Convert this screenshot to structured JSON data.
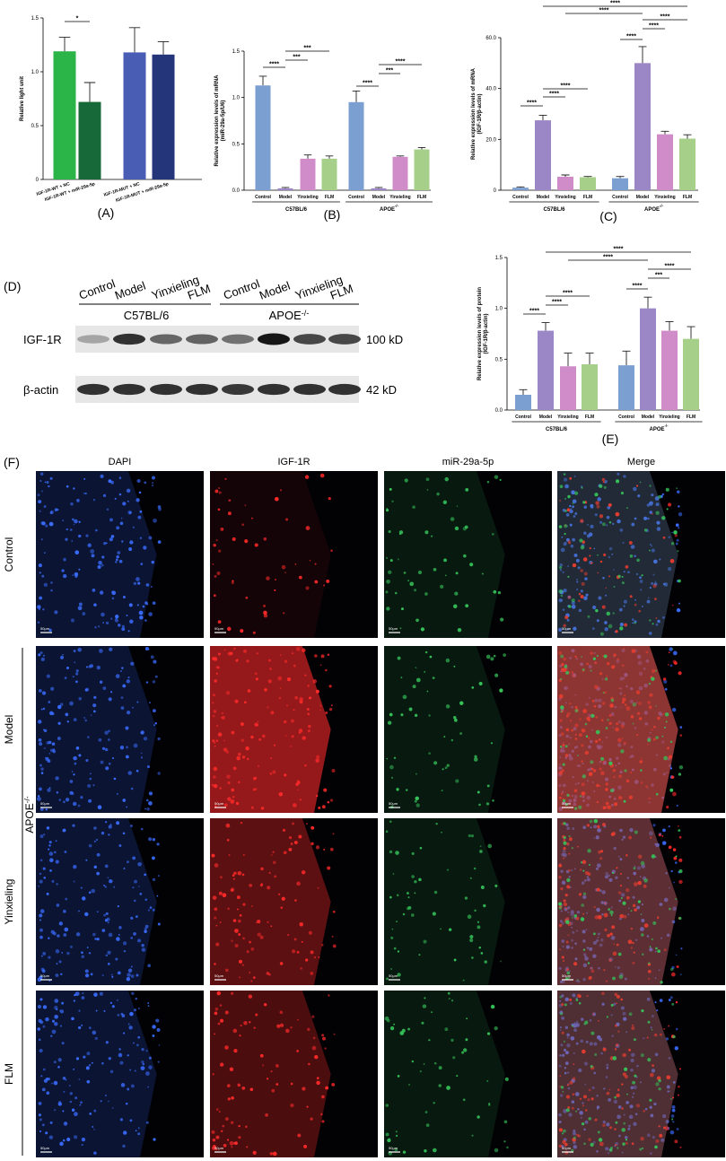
{
  "chart_data": [
    {
      "type": "bar",
      "panel": "(A)",
      "ylabel": [
        "Relative light unit"
      ],
      "categories": [
        "IGF-1R-WT + NC",
        "IGF-1R-WT + miR-29a-5p",
        "IGF-1R-MUT + NC",
        "IGF-1R-MUT + miR-29a-5p"
      ],
      "values": [
        1.19,
        0.72,
        1.18,
        1.16
      ],
      "errors": [
        0.13,
        0.18,
        0.23,
        0.12
      ],
      "colors": [
        "#2bb548",
        "#17693a",
        "#4a5db4",
        "#24357a"
      ],
      "ylim": [
        0,
        1.5
      ],
      "yticks": [
        0,
        0.5,
        {
          "value": 1,
          "label": "1.0"
        },
        1.5
      ],
      "significance": [
        "*"
      ]
    },
    {
      "type": "bar",
      "panel": "(B)",
      "ylabel": [
        "Relative expression levels of mRNA",
        "(miR-29a-5p/U6)"
      ],
      "categories": [
        "Control",
        "Model",
        "Yinxieling",
        "FLM",
        "Control",
        "Model",
        "Yinxieling",
        "FLM"
      ],
      "values": [
        1.13,
        0.02,
        0.34,
        0.34,
        0.95,
        0.02,
        0.36,
        0.44
      ],
      "errors": [
        0.1,
        0.01,
        0.04,
        0.03,
        0.12,
        0.01,
        0.01,
        0.02
      ],
      "colors": [
        "#7b9fd0",
        "#9b86c6",
        "#d08cc8",
        "#a6d08a",
        "#7b9fd0",
        "#9b86c6",
        "#d08cc8",
        "#a6d08a"
      ],
      "ylim": [
        0,
        1.5
      ],
      "yticks": [
        {
          "value": 0,
          "label": "0.0"
        },
        0.5,
        {
          "value": 1,
          "label": "1.0"
        },
        1.5
      ],
      "groups": [
        "C57BL/6",
        "APOE"
      ],
      "group_superscript": "-/-",
      "significance": [
        "****",
        "***",
        "***",
        "****",
        "***",
        "****"
      ]
    },
    {
      "type": "bar",
      "panel": "(C)",
      "ylabel": [
        "Relative expression levels of mRNA",
        "(IGF-1R/β-actin)"
      ],
      "categories": [
        "Control",
        "Model",
        "Yinxieling",
        "FLM",
        "Control",
        "Model",
        "Yinxieling",
        "FLM"
      ],
      "values": [
        1.0,
        27.5,
        5.3,
        5.1,
        4.7,
        50,
        22,
        20.3
      ],
      "errors": [
        0.3,
        2,
        0.7,
        0.3,
        0.7,
        6.5,
        1.2,
        1.5
      ],
      "colors": [
        "#7b9fd0",
        "#9b86c6",
        "#d08cc8",
        "#a6d08a",
        "#7b9fd0",
        "#9b86c6",
        "#d08cc8",
        "#a6d08a"
      ],
      "ylim": [
        0,
        60
      ],
      "yticks": [
        0,
        {
          "value": 20,
          "label": "20.0"
        },
        {
          "value": 40,
          "label": "40.0"
        },
        {
          "value": 60,
          "label": "60.0"
        }
      ],
      "groups": [
        "C57BL/6",
        "APOE"
      ],
      "group_superscript": "-/-",
      "significance": [
        "****",
        "****",
        "****",
        "****",
        "****",
        "****",
        "****",
        "****"
      ]
    },
    {
      "type": "bar",
      "panel": "(E)",
      "ylabel": [
        "Relative expression levels of protein",
        "(IGF-1R/β-actin)"
      ],
      "categories": [
        "Control",
        "Model",
        "Yinxieling",
        "FLM",
        "Control",
        "Model",
        "Yinxieling",
        "FLM"
      ],
      "values": [
        0.15,
        0.78,
        0.43,
        0.45,
        0.44,
        1.0,
        0.78,
        0.7
      ],
      "errors": [
        0.05,
        0.08,
        0.13,
        0.11,
        0.14,
        0.11,
        0.09,
        0.12
      ],
      "colors": [
        "#7b9fd0",
        "#9b86c6",
        "#d08cc8",
        "#a6d08a",
        "#7b9fd0",
        "#9b86c6",
        "#d08cc8",
        "#a6d08a"
      ],
      "ylim": [
        0,
        1.5
      ],
      "yticks": [
        {
          "value": 0,
          "label": "0.0"
        },
        0.5,
        {
          "value": 1,
          "label": "1.0"
        },
        1.5
      ],
      "groups": [
        "C57BL/6",
        "APOE"
      ],
      "group_superscript": "-/-",
      "significance": [
        "****",
        "****",
        "****",
        "****",
        "***",
        "****",
        "****",
        "****"
      ]
    }
  ],
  "blot": {
    "panel": "(D)",
    "lanes": [
      "Control",
      "Model",
      "Yinxieling",
      "FLM",
      "Control",
      "Model",
      "Yinxieling",
      "FLM"
    ],
    "groups": [
      "C57BL/6",
      "APOE"
    ],
    "group_superscript": "-/-",
    "rows": [
      {
        "name": "IGF-1R",
        "size": "100 kD"
      },
      {
        "name": "β-actin",
        "size": "42 kD"
      }
    ]
  },
  "microscopy": {
    "panel": "(F)",
    "channels": [
      "DAPI",
      "IGF-1R",
      "miR-29a-5p",
      "Merge"
    ],
    "conditions": [
      "Control",
      "Model",
      "Yinxieling",
      "FLM"
    ],
    "group": "APOE",
    "group_superscript": "-/-",
    "scale_bar": "50μm"
  }
}
